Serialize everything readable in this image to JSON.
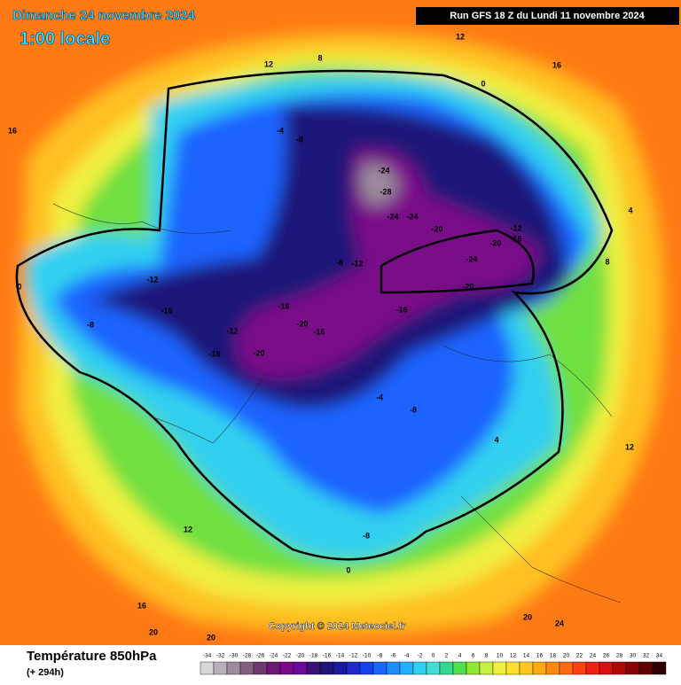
{
  "header": {
    "date": "Dimanche 24 novembre 2024",
    "time": "1:00 locale",
    "run": "Run GFS 18 Z du Lundi 11 novembre 2024"
  },
  "copyright": "Copyright © 2024 Meteociel.fr",
  "contour_labels": [
    -24,
    -28,
    -24,
    -24,
    -20,
    -24,
    -20,
    -20,
    -16,
    -12,
    -16,
    -16,
    -20,
    -16,
    -20,
    -16,
    -12,
    -16,
    -8,
    -12,
    -8,
    -12,
    -4,
    -8,
    0,
    4,
    8,
    12,
    16,
    12,
    16,
    20,
    20,
    24,
    20,
    -8,
    -4,
    -8,
    0,
    4,
    12,
    16,
    8,
    12,
    0
  ],
  "legend": {
    "title": "Température 850hPa",
    "subtitle": "(+ 294h)",
    "stops": [
      -34,
      -32,
      -30,
      -28,
      -26,
      -24,
      -22,
      -20,
      -18,
      -16,
      -14,
      -12,
      -10,
      -8,
      -6,
      -4,
      -2,
      0,
      2,
      4,
      6,
      8,
      10,
      12,
      14,
      16,
      18,
      20,
      22,
      24,
      26,
      28,
      30,
      32,
      34
    ],
    "colors": [
      "#d8d8d8",
      "#b8b0b8",
      "#9c8c9c",
      "#806080",
      "#703870",
      "#6a1870",
      "#7a0888",
      "#6a0a9a",
      "#3a1070",
      "#1c1478",
      "#1a1aa0",
      "#1e28c8",
      "#1440e8",
      "#1a64ff",
      "#1c8cff",
      "#20b0ff",
      "#30d0f0",
      "#40e0d8",
      "#30d890",
      "#50e050",
      "#90e830",
      "#c8f040",
      "#f0f040",
      "#ffe030",
      "#ffc820",
      "#ffaa10",
      "#ff8a10",
      "#ff6a10",
      "#ff4010",
      "#f02010",
      "#d81010",
      "#b00808",
      "#880404",
      "#600202",
      "#300000"
    ]
  }
}
